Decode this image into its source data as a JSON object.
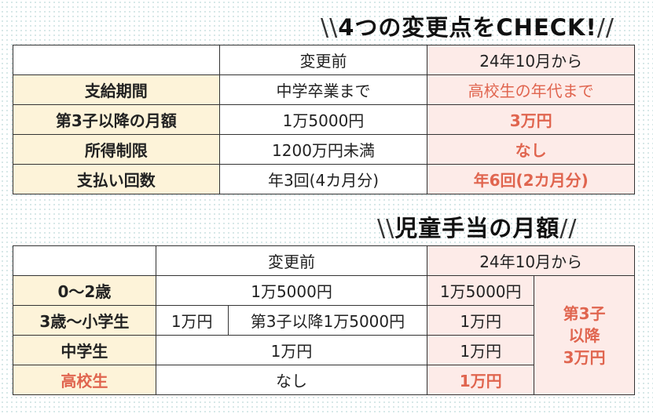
{
  "section1": {
    "title": "4つの変更点をCHECK!",
    "columns": [
      "",
      "変更前",
      "24年10月から"
    ],
    "rows": [
      {
        "label": "支給期間",
        "before": "中学卒業まで",
        "after": "高校生の年代まで"
      },
      {
        "label": "第3子以降の月額",
        "before": "1万5000円",
        "after": "3万円"
      },
      {
        "label": "所得制限",
        "before": "1200万円未満",
        "after": "なし"
      },
      {
        "label": "支払い回数",
        "before": "年3回(4カ月分)",
        "after": "年6回(2カ月分)"
      }
    ]
  },
  "section2": {
    "title": "児童手当の月額",
    "columns": [
      "",
      "変更前",
      "24年10月から"
    ],
    "rows": [
      {
        "label": "0〜2歳",
        "before": "1万5000円",
        "after": "1万5000円"
      },
      {
        "label": "3歳〜小学生",
        "before_a": "1万円",
        "before_b": "第3子以降1万5000円",
        "after": "1万円"
      },
      {
        "label": "中学生",
        "before": "1万円",
        "after": "1万円"
      },
      {
        "label": "高校生",
        "before": "なし",
        "after": "1万円"
      }
    ],
    "third_child_note": [
      "第3子",
      "以降",
      "3万円"
    ]
  },
  "colors": {
    "header_bg": "#fdf3d9",
    "after_bg": "#fdebe8",
    "accent_red": "#e0654f"
  }
}
